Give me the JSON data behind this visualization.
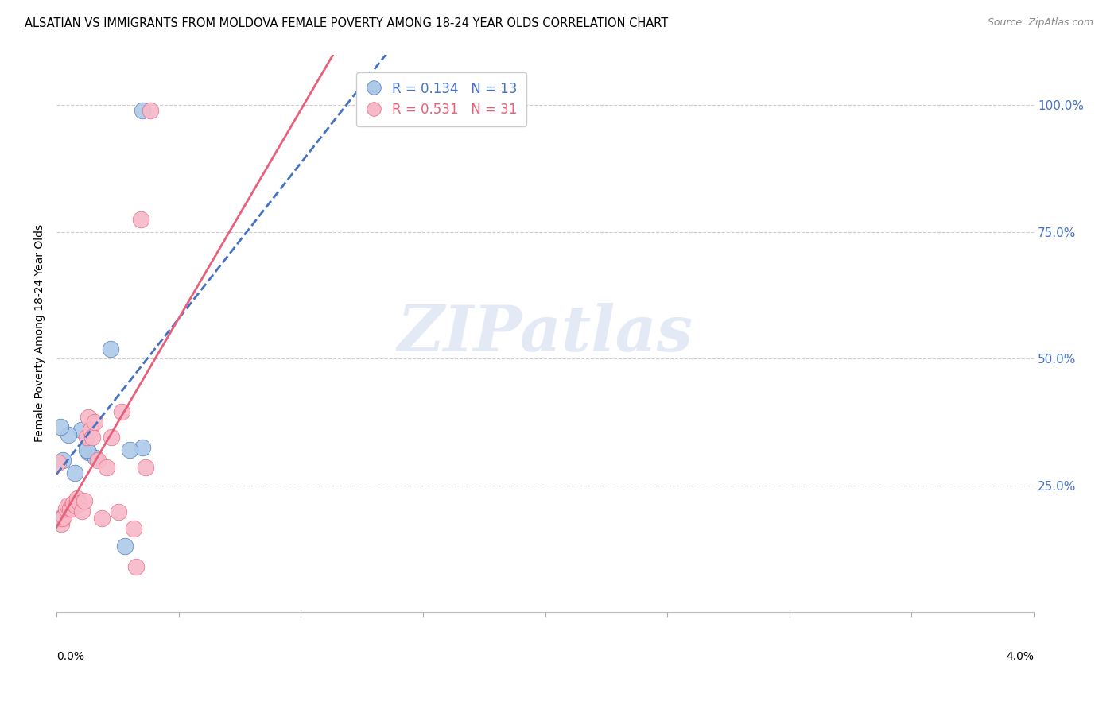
{
  "title": "ALSATIAN VS IMMIGRANTS FROM MOLDOVA FEMALE POVERTY AMONG 18-24 YEAR OLDS CORRELATION CHART",
  "source": "Source: ZipAtlas.com",
  "ylabel": "Female Poverty Among 18-24 Year Olds",
  "watermark": "ZIPatlas",
  "legend": {
    "alsatian_R": "0.134",
    "alsatian_N": "13",
    "moldova_R": "0.531",
    "moldova_N": "31"
  },
  "alsatian_color": "#adc9e8",
  "alsatian_line_color": "#4472c4",
  "moldova_color": "#f7b8c8",
  "moldova_line_color": "#e8607a",
  "background_color": "#ffffff",
  "alsatian_x": [
    0.35,
    0.1,
    0.05,
    0.025,
    0.015,
    0.075,
    0.13,
    0.16,
    0.22,
    0.35,
    0.125,
    0.3,
    0.28
  ],
  "alsatian_y": [
    0.99,
    0.36,
    0.35,
    0.3,
    0.365,
    0.275,
    0.315,
    0.305,
    0.52,
    0.325,
    0.32,
    0.32,
    0.13
  ],
  "moldova_x": [
    0.005,
    0.012,
    0.018,
    0.022,
    0.028,
    0.038,
    0.045,
    0.055,
    0.062,
    0.068,
    0.078,
    0.085,
    0.095,
    0.105,
    0.115,
    0.125,
    0.13,
    0.14,
    0.148,
    0.155,
    0.168,
    0.185,
    0.205,
    0.225,
    0.255,
    0.268,
    0.315,
    0.325,
    0.345,
    0.365,
    0.385
  ],
  "moldova_y": [
    0.295,
    0.185,
    0.175,
    0.185,
    0.188,
    0.205,
    0.21,
    0.205,
    0.205,
    0.215,
    0.21,
    0.225,
    0.215,
    0.2,
    0.22,
    0.345,
    0.385,
    0.36,
    0.345,
    0.375,
    0.3,
    0.185,
    0.285,
    0.345,
    0.198,
    0.395,
    0.165,
    0.09,
    0.775,
    0.285,
    0.99
  ],
  "xlim_pct": [
    0.0,
    4.0
  ],
  "ylim": [
    0.0,
    1.1
  ],
  "yticks": [
    0.25,
    0.5,
    0.75,
    1.0
  ],
  "ytick_labels": [
    "25.0%",
    "50.0%",
    "75.0%",
    "100.0%"
  ],
  "xtick_positions": [
    0.0,
    0.5,
    1.0,
    1.5,
    2.0,
    2.5,
    3.0,
    3.5,
    4.0
  ]
}
